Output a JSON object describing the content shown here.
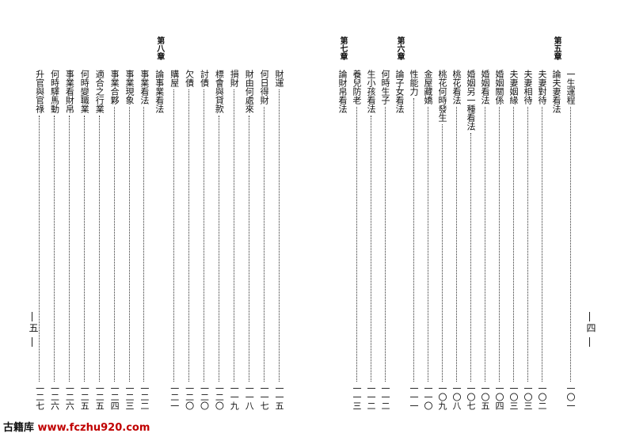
{
  "pages": [
    {
      "page_number": "四",
      "entries": [
        {
          "title": "一生運程",
          "page": "一〇一"
        },
        {
          "chapter": "第五章",
          "title": "論夫妻看法"
        },
        {
          "title": "夫妻對待",
          "page": "一〇二"
        },
        {
          "title": "夫妻相待",
          "page": "一〇三"
        },
        {
          "title": "夫妻姻緣",
          "page": "一〇三"
        },
        {
          "title": "婚姻關係",
          "page": "一〇四"
        },
        {
          "title": "婚姻看法",
          "page": "一〇五"
        },
        {
          "title": "婚姻另一種看法",
          "page": "一〇七"
        },
        {
          "title": "桃花看法",
          "page": "一〇八"
        },
        {
          "title": "桃花何時發生",
          "page": "一〇九"
        },
        {
          "title": "金屋藏嬌",
          "page": "一一〇"
        },
        {
          "title": "性能力",
          "page": "一一一"
        },
        {
          "chapter": "第六章",
          "title": "論子女看法"
        },
        {
          "title": "何時生子",
          "page": "一一二"
        },
        {
          "title": "生小孩看法",
          "page": "一一二"
        },
        {
          "title": "養兒防老",
          "page": "一一三"
        },
        {
          "chapter": "第七章",
          "title": "論財帛看法"
        }
      ]
    },
    {
      "page_number": "五",
      "entries": [
        {
          "title": "財運",
          "page": "一一五"
        },
        {
          "title": "何日得財",
          "page": "一一七"
        },
        {
          "title": "財由何處來",
          "page": "一一八"
        },
        {
          "title": "損財",
          "page": "一一九"
        },
        {
          "title": "標會與貸款",
          "page": "一二〇"
        },
        {
          "title": "討債",
          "page": "一二〇"
        },
        {
          "title": "欠債",
          "page": "一二〇"
        },
        {
          "title": "購屋",
          "page": "一二一"
        },
        {
          "chapter": "第八章",
          "title": "論事業看法"
        },
        {
          "title": "事業看法",
          "page": "一二二"
        },
        {
          "title": "事業現象",
          "page": "一二三"
        },
        {
          "title": "事業合夥",
          "page": "一二四"
        },
        {
          "title": "適合之行業",
          "page": "一二五"
        },
        {
          "title": "何時變職業",
          "page": "一二五"
        },
        {
          "title": "事業看財帛",
          "page": "一二六"
        },
        {
          "title": "何時驛馬動",
          "page": "一二六"
        },
        {
          "title": "升官與官祿",
          "page": "一二七"
        }
      ]
    }
  ],
  "footer": {
    "brand": "古籍库",
    "url": "www.fczhu920.com"
  }
}
